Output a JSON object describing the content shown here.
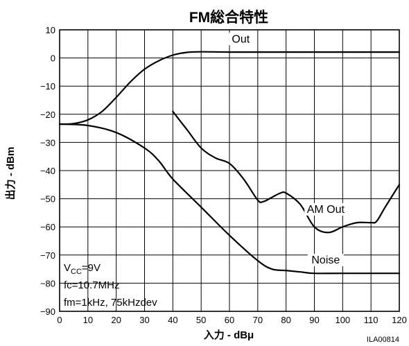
{
  "chart_data": {
    "type": "line",
    "title": "FM総合特性",
    "xlabel": "入力 - dBμ",
    "ylabel": "出力 - dBm",
    "xlim": [
      0,
      120
    ],
    "ylim": [
      -90,
      10
    ],
    "x_ticks": [
      0,
      10,
      20,
      30,
      40,
      50,
      60,
      70,
      80,
      90,
      100,
      110,
      120
    ],
    "y_ticks": [
      10,
      0,
      -10,
      -20,
      -30,
      -40,
      -50,
      -60,
      -70,
      -80,
      -90
    ],
    "grid": true,
    "series": [
      {
        "name": "Out",
        "x": [
          0,
          5,
          10,
          15,
          20,
          25,
          30,
          35,
          40,
          45,
          50,
          60,
          80,
          100,
          120
        ],
        "y": [
          -23.5,
          -23.3,
          -22,
          -19,
          -14,
          -8.5,
          -4,
          -1,
          1,
          2,
          2.2,
          2.1,
          2.1,
          2.1,
          2.1
        ],
        "label_pos": [
          64,
          5.5
        ]
      },
      {
        "name": "AM Out",
        "x": [
          40,
          45,
          50,
          55,
          60,
          65,
          70,
          72,
          75,
          78,
          80,
          85,
          90,
          95,
          100,
          105,
          110,
          112,
          115,
          120
        ],
        "y": [
          -19,
          -25.5,
          -32,
          -35.5,
          -37.5,
          -43,
          -50.5,
          -51,
          -49.5,
          -48,
          -48,
          -52,
          -60,
          -62,
          -60,
          -58.5,
          -58.5,
          -58,
          -53,
          -45
        ],
        "label_pos": [
          94,
          -55
        ]
      },
      {
        "name": "Noise",
        "x": [
          0,
          10,
          20,
          30,
          35,
          40,
          50,
          60,
          70,
          75,
          80,
          85,
          90,
          100,
          120
        ],
        "y": [
          -23.5,
          -24,
          -26.5,
          -32,
          -36.5,
          -43,
          -53,
          -63,
          -72,
          -75,
          -75.5,
          -76,
          -76.5,
          -76.5,
          -76.5
        ],
        "label_pos": [
          94,
          -73
        ]
      }
    ],
    "annotations": {
      "vcc": {
        "text": "V",
        "sub": "CC",
        "value": "=9V"
      },
      "fc": "fc=10.7MHz",
      "fm": "fm=1kHz, 75kHzdev"
    },
    "figure_id": "ILA00814"
  }
}
